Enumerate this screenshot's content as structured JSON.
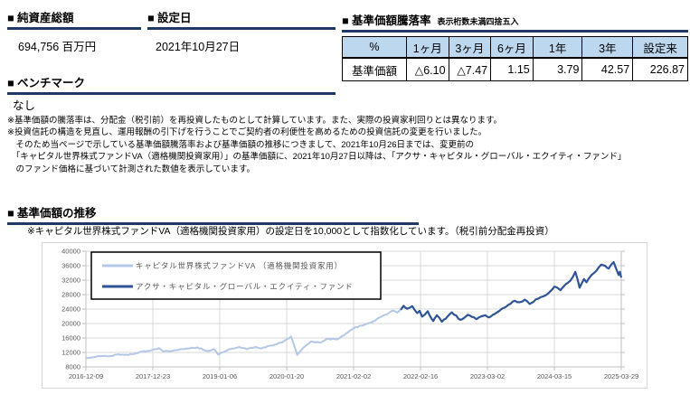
{
  "sections": {
    "aum": {
      "title": "■ 純資産総額",
      "value": "694,756 百万円"
    },
    "inception": {
      "title": "■ 設定日",
      "value": "2021年10月27日"
    },
    "benchmark": {
      "title": "■ ベンチマーク",
      "value": "なし"
    },
    "performance": {
      "title": "■ 基準価額騰落率",
      "subtitle": "表示桁数未満四捨五入",
      "table": {
        "headers": [
          "%",
          "1ヶ月",
          "3ヶ月",
          "6ヶ月",
          "1年",
          "3年",
          "設定来"
        ],
        "rows": [
          {
            "label": "基準価額",
            "values": [
              "△6.10",
              "△7.47",
              "1.15",
              "3.79",
              "42.57",
              "226.87"
            ]
          }
        ]
      }
    },
    "chart_section": {
      "title": "■ 基準価額の推移",
      "note": "※キャピタル世界株式ファンドVA（適格機関投資家用）の設定日を10,000として指数化しています。（税引前分配金再投資）"
    }
  },
  "notes": [
    "※基準価額の騰落率は、分配金（税引前）を再投資したものとして計算しています。また、実際の投資家利回りとは異なります。",
    "※投資信託の構造を見直し、運用報酬の引下げを行うことでご契約者の利便性を高めるための投資信託の変更を行いました。",
    "　そのため当ページで示している基準価額騰落率および基準価額の推移につきまして、2021年10月26日までは、変更前の",
    "　「キャピタル世界株式ファンドVA（適格機関投資家用）」の基準価額に、2021年10月27日以降は、「アクサ・キャピタル・グローバル・エクイティ・ファンド」",
    "　のファンド価格に基づいて計測された数値を表示しています。"
  ],
  "chart_data": {
    "type": "line",
    "title": "",
    "xlabel": "",
    "ylabel": "",
    "index_base": 10000,
    "ylim": [
      8000,
      40000
    ],
    "ytick_step": 4000,
    "grid": true,
    "legend_position": "top-left",
    "xticklabels": [
      "2016-12-09",
      "2017-12-23",
      "2019-01-06",
      "2020-01-20",
      "2021-02-02",
      "2022-02-16",
      "2023-03-02",
      "2024-03-15",
      "2025-03-29"
    ],
    "series": [
      {
        "name": "キャピタル世界株式ファンドVA （適格機関投資家用）",
        "color": "#B4C7E7",
        "points": [
          [
            "2016-12-09",
            10400
          ],
          [
            "2017-01-20",
            10650
          ],
          [
            "2017-03-03",
            11000
          ],
          [
            "2017-04-14",
            10900
          ],
          [
            "2017-06-02",
            11400
          ],
          [
            "2017-07-14",
            11300
          ],
          [
            "2017-09-08",
            11550
          ],
          [
            "2017-10-20",
            12200
          ],
          [
            "2017-12-23",
            12700
          ],
          [
            "2018-01-26",
            13200
          ],
          [
            "2018-02-16",
            12400
          ],
          [
            "2018-03-30",
            12300
          ],
          [
            "2018-06-08",
            12900
          ],
          [
            "2018-08-31",
            13400
          ],
          [
            "2018-10-26",
            12400
          ],
          [
            "2018-12-07",
            12900
          ],
          [
            "2018-12-28",
            11400
          ],
          [
            "2019-02-22",
            12700
          ],
          [
            "2019-04-26",
            13500
          ],
          [
            "2019-06-07",
            12900
          ],
          [
            "2019-07-26",
            13500
          ],
          [
            "2019-08-30",
            13100
          ],
          [
            "2019-10-25",
            13900
          ],
          [
            "2019-12-27",
            14800
          ],
          [
            "2020-02-14",
            16400
          ],
          [
            "2020-03-20",
            11300
          ],
          [
            "2020-04-24",
            13300
          ],
          [
            "2020-06-05",
            15000
          ],
          [
            "2020-07-31",
            14700
          ],
          [
            "2020-09-04",
            15800
          ],
          [
            "2020-10-30",
            15600
          ],
          [
            "2020-12-31",
            17500
          ],
          [
            "2021-02-05",
            18800
          ],
          [
            "2021-03-19",
            19400
          ],
          [
            "2021-05-14",
            20300
          ],
          [
            "2021-06-25",
            21600
          ],
          [
            "2021-08-13",
            22600
          ],
          [
            "2021-09-10",
            23600
          ],
          [
            "2021-10-08",
            23000
          ],
          [
            "2021-10-26",
            23800
          ]
        ]
      },
      {
        "name": "アクサ・キャピタル・グローバル・エクイティ・ファンド",
        "color": "#2F5597",
        "points": [
          [
            "2021-10-27",
            23800
          ],
          [
            "2021-11-12",
            24900
          ],
          [
            "2021-12-03",
            24100
          ],
          [
            "2021-12-31",
            24800
          ],
          [
            "2022-01-28",
            22900
          ],
          [
            "2022-02-11",
            23500
          ],
          [
            "2022-02-25",
            21900
          ],
          [
            "2022-03-11",
            22400
          ],
          [
            "2022-03-29",
            23400
          ],
          [
            "2022-04-29",
            20700
          ],
          [
            "2022-05-20",
            22300
          ],
          [
            "2022-06-17",
            20500
          ],
          [
            "2022-08-12",
            23100
          ],
          [
            "2022-09-30",
            21000
          ],
          [
            "2022-11-11",
            22400
          ],
          [
            "2022-12-02",
            21900
          ],
          [
            "2022-12-30",
            21200
          ],
          [
            "2023-01-27",
            22000
          ],
          [
            "2023-02-17",
            22300
          ],
          [
            "2023-03-10",
            21700
          ],
          [
            "2023-04-14",
            22700
          ],
          [
            "2023-06-02",
            24300
          ],
          [
            "2023-06-30",
            25200
          ],
          [
            "2023-08-04",
            26300
          ],
          [
            "2023-09-01",
            25900
          ],
          [
            "2023-09-29",
            26600
          ],
          [
            "2023-10-27",
            25400
          ],
          [
            "2023-12-01",
            26700
          ],
          [
            "2023-12-29",
            27300
          ],
          [
            "2024-01-26",
            27800
          ],
          [
            "2024-02-23",
            29000
          ],
          [
            "2024-03-15",
            30200
          ],
          [
            "2024-04-19",
            29200
          ],
          [
            "2024-05-17",
            30800
          ],
          [
            "2024-06-14",
            31900
          ],
          [
            "2024-07-12",
            34300
          ],
          [
            "2024-08-05",
            29900
          ],
          [
            "2024-08-30",
            32300
          ],
          [
            "2024-09-13",
            31400
          ],
          [
            "2024-10-11",
            33400
          ],
          [
            "2024-11-08",
            34600
          ],
          [
            "2024-12-06",
            36300
          ],
          [
            "2024-12-27",
            36000
          ],
          [
            "2025-01-17",
            35200
          ],
          [
            "2025-01-31",
            36300
          ],
          [
            "2025-02-14",
            37000
          ],
          [
            "2025-02-28",
            35200
          ],
          [
            "2025-03-07",
            34300
          ],
          [
            "2025-03-14",
            33400
          ],
          [
            "2025-03-21",
            34300
          ],
          [
            "2025-03-29",
            32700
          ]
        ]
      }
    ]
  }
}
